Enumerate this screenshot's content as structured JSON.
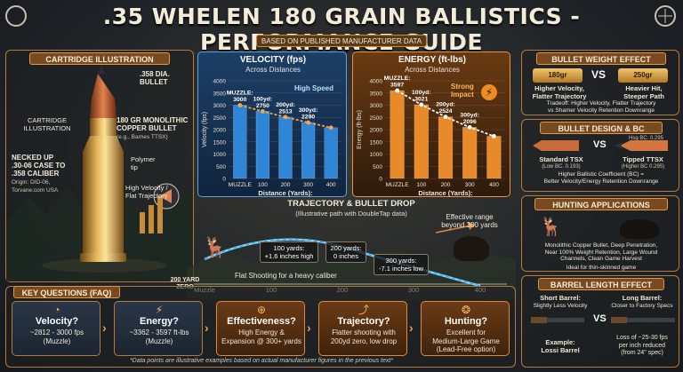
{
  "header": {
    "title": ".35 WHELEN 180 GRAIN BALLISTICS - PERFORMANCE GUIDE",
    "subtitle": "BASED ON PUBLISHED MANUFACTURER DATA"
  },
  "cartridge": {
    "heading": "CARTRIDGE ILLUSTRATION",
    "left_caption": "CARTRIDGE\nILLUSTRATION",
    "bullet_dia": ".358 DIA.\nBULLET",
    "bullet_type": "180 GR MONOLITHIC\nCOPPER BULLET",
    "bullet_example": "(e.g., Barnes TTSX)",
    "polymer_tip": "Polymer\ntip",
    "necked": "NECKED UP\n.30-06 CASE TO\n.358 CALIBER",
    "origin": "Origin: DID-06,\nTorvane.com USA",
    "trajectory_note": "High Velocity /\nFlat Trajectory"
  },
  "velocity_chart": {
    "title": "VELOCITY (fps)",
    "subtitle": "Across Distances",
    "ylabel": "Velocity (fps)",
    "xlabel": "Distance (Yards):",
    "badge": "High Speed",
    "labels": [
      "MUZZLE:\n3000",
      "100yd:\n2750",
      "200yd:\n2513",
      "300yd:\n2290"
    ]
  },
  "energy_chart": {
    "title": "ENERGY (ft-lbs)",
    "subtitle": "Across Distances",
    "ylabel": "Energy (ft-lbs)",
    "xlabel": "Distance (Yards):",
    "badge": "Strong\nImpact",
    "labels": [
      "MUZZLE:\n3597",
      "100yd:\n3021",
      "200yd:\n2524",
      "300yd:\n2096"
    ]
  },
  "chart_data": [
    {
      "type": "bar",
      "title": "VELOCITY (fps)",
      "subtitle": "Across Distances",
      "xlabel": "Distance (Yards):",
      "ylabel": "Velocity (fps)",
      "categories": [
        "MUZZLE",
        "100",
        "200",
        "300",
        "400"
      ],
      "values": [
        3000,
        2750,
        2513,
        2290,
        2080
      ],
      "ylim": [
        0,
        4000
      ],
      "yticks": [
        0,
        500,
        1000,
        1500,
        2000,
        2500,
        3000,
        3500,
        4000
      ],
      "bar_color": "#2f86d6",
      "line_color": "#f5a44a"
    },
    {
      "type": "bar",
      "title": "ENERGY (ft-lbs)",
      "subtitle": "Across Distances",
      "xlabel": "Distance (Yards):",
      "ylabel": "Energy (ft-lbs)",
      "categories": [
        "MUZZLE",
        "100",
        "200",
        "300",
        "400"
      ],
      "values": [
        3597,
        3021,
        2524,
        2096,
        1730
      ],
      "ylim": [
        0,
        4000
      ],
      "yticks": [
        0,
        500,
        1000,
        1500,
        2000,
        2500,
        3000,
        3500,
        4000
      ],
      "bar_color": "#e98a2a",
      "line_color": "#ffffff"
    },
    {
      "type": "line",
      "title": "TRAJECTORY & BULLET DROP",
      "subtitle": "(Illustrative path with DoubleTap data)",
      "x": [
        "Muzzle",
        "100",
        "200",
        "300",
        "400"
      ],
      "y_inches": [
        -1.5,
        1.6,
        0,
        -7.1,
        -20
      ],
      "zero": "200 YARD\nZERO"
    }
  ],
  "trajectory": {
    "title": "TRAJECTORY & BULLET DROP",
    "subtitle": "(Illustrative path with DoubleTap data)",
    "zero_label": "200 YARD\nZERO",
    "c100": "100 yards:\n+1.6 inches high",
    "c200": "200 yards:\n0 inches",
    "c300": "300 yards:\n-7.1 inches low",
    "effective": "Effective range\nbeyond 300 yards",
    "flat": "Flat Shooting for a heavy caliber",
    "x_labels": [
      "Muzzle",
      "100",
      "200",
      "300",
      "400"
    ]
  },
  "bullet_weight": {
    "heading": "BULLET WEIGHT EFFECT",
    "light": "180gr",
    "heavy": "250gr",
    "vs": "VS",
    "light_text": "Higher Velocity,\nFlatter Trajectory",
    "heavy_text": "Heavier Hit,\nSteeper Path",
    "tradeoff": "Tradeoff: Higher Velocity, Flatter Trajectory\nvs Shamer Velocity Retention Downrange"
  },
  "bullet_design": {
    "heading": "BULLET DESIGN & BC",
    "hsg": "Hsg BC. 0.295",
    "left": "Standard TSX",
    "left_bc": "(Low BC. 0.193)",
    "right": "Tipped TTSX",
    "right_bc": "(Higher BC 0.295)",
    "vs": "VS",
    "note": "Higher Ballistic Coefficient (BC) =\nBetter Velocity/Energy Retention Downrange"
  },
  "hunting": {
    "heading": "HUNTING APPLICATIONS",
    "text": "Monolithic Copper Bullet, Deep Penetration,\nNear 100% Weight Retention, Large Wound\nChannels, Clean Game Harvest",
    "ideal": "Ideal for thin-skinned game"
  },
  "barrel": {
    "heading": "BARREL LENGTH EFFECT",
    "short_title": "Short Barrel:",
    "short_sub": "Slightly Less Velocity",
    "long_title": "Long Barrel:",
    "long_sub": "Closer to Factory Specs",
    "vs": "VS",
    "example": "Example:\nLossi Barrel",
    "loss": "Loss of ~25-30 fps\nper inch reduced\n(from 24\" spec)"
  },
  "faq": {
    "heading": "KEY QUESTIONS (FAQ)",
    "cards": [
      {
        "q": "Velocity?",
        "a": "~2812 - 3000 fps\n(Muzzle)"
      },
      {
        "q": "Energy?",
        "a": "~3362 - 3597 ft-lbs\n(Muzzle)"
      },
      {
        "q": "Effectiveness?",
        "a": "High Energy &\nExpansion @ 300+ yards"
      },
      {
        "q": "Trajectory?",
        "a": "Flatter shooting with\n200yd zero, low drop"
      },
      {
        "q": "Hunting?",
        "a": "Excellent for\nMedium-Large Game\n(Lead-Free option)"
      }
    ],
    "footnote": "*Data points are illustrative examples based on actual manufacturer figures in the previous text*"
  },
  "colors": {
    "accent": "#b5793a",
    "velocity_blue": "#2f86d6",
    "energy_orange": "#e98a2a",
    "faq_blue": "#2a3647"
  },
  "icons": [
    "scope-icon",
    "speedometer-icon",
    "lightning-icon",
    "crosshair-icon",
    "trajectory-icon",
    "deer-icon",
    "bear-icon"
  ]
}
